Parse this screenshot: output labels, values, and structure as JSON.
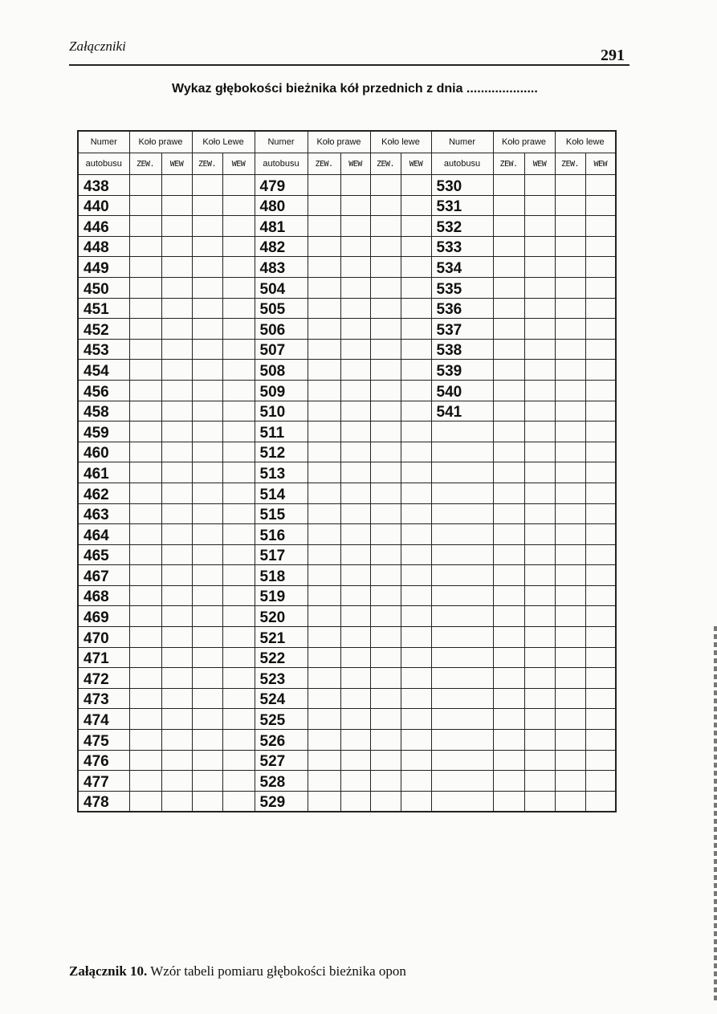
{
  "header": {
    "running_title": "Załączniki",
    "page_number": "291"
  },
  "title": "Wykaz głębokości bieżnika kół przednich z dnia ....................",
  "table": {
    "groups": [
      {
        "number_header": [
          "Numer",
          "autobusu"
        ],
        "right_wheel": "Koło prawe",
        "left_wheel": "Koło Lewe",
        "sub": [
          "ZEW.",
          "WEW",
          "ZEW.",
          "WEW"
        ]
      },
      {
        "number_header": [
          "Numer",
          "autobusu"
        ],
        "right_wheel": "Koło prawe",
        "left_wheel": "Koło lewe",
        "sub": [
          "ZEW.",
          "WEW",
          "ZEW.",
          "WEW"
        ]
      },
      {
        "number_header": [
          "Numer",
          "autobusu"
        ],
        "right_wheel": "Koło prawe",
        "left_wheel": "Koło lewe",
        "sub": [
          "ZEW.",
          "WEW",
          "ZEW.",
          "WEW"
        ]
      }
    ],
    "columns": [
      [
        "438",
        "440",
        "446",
        "448",
        "449",
        "450",
        "451",
        "452",
        "453",
        "454",
        "456",
        "458",
        "459",
        "460",
        "461",
        "462",
        "463",
        "464",
        "465",
        "467",
        "468",
        "469",
        "470",
        "471",
        "472",
        "473",
        "474",
        "475",
        "476",
        "477",
        "478"
      ],
      [
        "479",
        "480",
        "481",
        "482",
        "483",
        "504",
        "505",
        "506",
        "507",
        "508",
        "509",
        "510",
        "511",
        "512",
        "513",
        "514",
        "515",
        "516",
        "517",
        "518",
        "519",
        "520",
        "521",
        "522",
        "523",
        "524",
        "525",
        "526",
        "527",
        "528",
        "529"
      ],
      [
        "530",
        "531",
        "532",
        "533",
        "534",
        "535",
        "536",
        "537",
        "538",
        "539",
        "540",
        "541",
        "",
        "",
        "",
        "",
        "",
        "",
        "",
        "",
        "",
        "",
        "",
        "",
        "",
        "",
        "",
        "",
        "",
        "",
        ""
      ]
    ]
  },
  "caption": {
    "label": "Załącznik 10.",
    "text": " Wzór tabeli pomiaru głębokości bieżnika opon"
  }
}
